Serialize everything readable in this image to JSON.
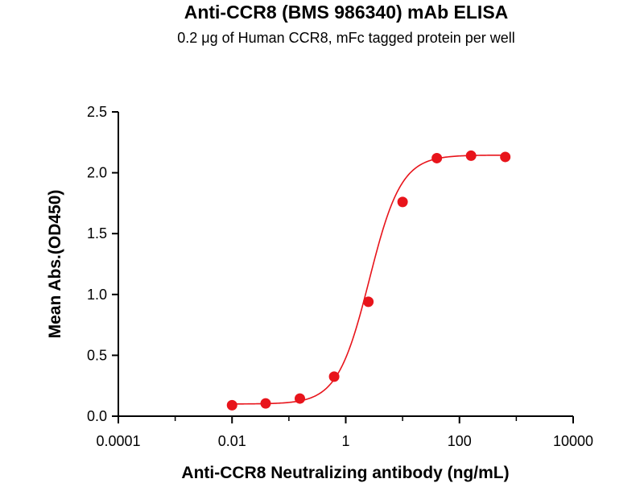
{
  "chart_data": {
    "type": "scatter",
    "title": "Anti-CCR8 (BMS 986340) mAb ELISA",
    "subtitle": "0.2 μg of Human CCR8, mFc tagged protein per well",
    "xlabel": "Anti-CCR8 Neutralizing antibody (ng/mL)",
    "ylabel": "Mean Abs.(OD450)",
    "x_scale": "log",
    "xlim": [
      0.0001,
      10000
    ],
    "ylim": [
      0,
      2.5
    ],
    "x_ticks": [
      0.0001,
      0.01,
      1,
      100,
      10000
    ],
    "x_tick_labels": [
      "0.0001",
      "0.01",
      "1",
      "100",
      "10000"
    ],
    "y_ticks": [
      0,
      0.5,
      1,
      1.5,
      2,
      2.5
    ],
    "y_tick_labels": [
      "0.0",
      "0.5",
      "1.0",
      "1.5",
      "2.0",
      "2.5"
    ],
    "grid": false,
    "color": "#e8141b",
    "series": [
      {
        "x": [
          0.01,
          0.039,
          0.156,
          0.625,
          2.5,
          10,
          40,
          160,
          640
        ],
        "y": [
          0.09,
          0.105,
          0.145,
          0.325,
          0.94,
          1.76,
          2.12,
          2.14,
          2.13
        ],
        "fit": "4PL"
      }
    ]
  }
}
